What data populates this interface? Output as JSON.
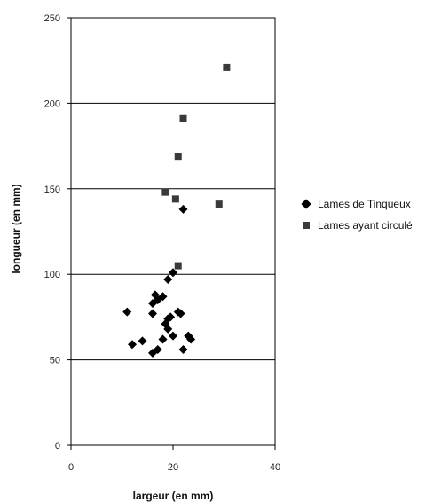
{
  "chart_data": {
    "type": "scatter",
    "title": "",
    "xlabel": "largeur (en mm)",
    "ylabel": "longueur (en mm)",
    "xlim": [
      0,
      40
    ],
    "ylim": [
      0,
      250
    ],
    "x_ticks": [
      "0",
      "20",
      "40"
    ],
    "y_ticks": [
      "0",
      "50",
      "100",
      "150",
      "200",
      "250"
    ],
    "y_gridlines": [
      50,
      100,
      150,
      200,
      250
    ],
    "legend_position": "right",
    "series": [
      {
        "name": "Lames de Tinqueux",
        "marker": "diamond",
        "color": "#000000",
        "points": [
          [
            11,
            78
          ],
          [
            12,
            59
          ],
          [
            14,
            61
          ],
          [
            16,
            54
          ],
          [
            17,
            56
          ],
          [
            16,
            77
          ],
          [
            16,
            83
          ],
          [
            16.5,
            88
          ],
          [
            17,
            85
          ],
          [
            18,
            87
          ],
          [
            18,
            62
          ],
          [
            18.5,
            71
          ],
          [
            19,
            74
          ],
          [
            19,
            68
          ],
          [
            19.5,
            75
          ],
          [
            19,
            97
          ],
          [
            20,
            101
          ],
          [
            20,
            64
          ],
          [
            21,
            78
          ],
          [
            21.5,
            77
          ],
          [
            22,
            56
          ],
          [
            22,
            138
          ],
          [
            23,
            64
          ],
          [
            23.5,
            62
          ]
        ]
      },
      {
        "name": "Lames ayant circulé",
        "marker": "square",
        "color": "#3a3a3a",
        "points": [
          [
            18.5,
            148
          ],
          [
            20.5,
            144
          ],
          [
            21,
            105
          ],
          [
            21,
            169
          ],
          [
            22,
            191
          ],
          [
            29,
            141
          ],
          [
            30.5,
            221
          ]
        ]
      }
    ]
  }
}
